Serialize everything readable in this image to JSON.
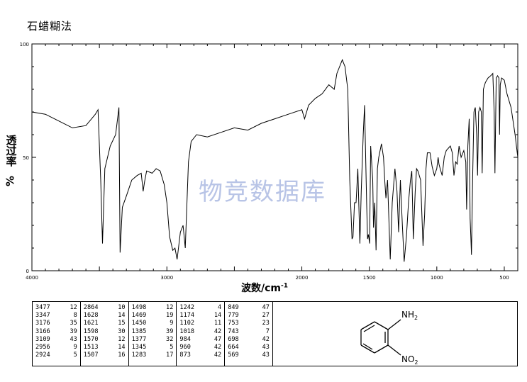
{
  "header": {
    "method": "石蜡糊法"
  },
  "watermark": "物竞数据库",
  "chart_data": {
    "type": "line",
    "xlabel": "波数/cm",
    "xlabel_sup": "-1",
    "ylabel": "透过率",
    "ylabel_unit": "%",
    "xlim": [
      4000,
      400
    ],
    "ylim": [
      0,
      100
    ],
    "x_ticks": [
      "4000",
      "3000",
      "2000",
      "1500",
      "1000",
      "500"
    ],
    "y_ticks": [
      "100",
      "50",
      "0"
    ],
    "series": [
      {
        "values": [
          [
            4000,
            70
          ],
          [
            3900,
            69
          ],
          [
            3800,
            66
          ],
          [
            3700,
            63
          ],
          [
            3600,
            64
          ],
          [
            3530,
            69
          ],
          [
            3510,
            71
          ],
          [
            3490,
            40
          ],
          [
            3477,
            12
          ],
          [
            3460,
            45
          ],
          [
            3420,
            55
          ],
          [
            3380,
            60
          ],
          [
            3355,
            72
          ],
          [
            3347,
            8
          ],
          [
            3330,
            28
          ],
          [
            3300,
            33
          ],
          [
            3260,
            40
          ],
          [
            3220,
            42
          ],
          [
            3190,
            43
          ],
          [
            3176,
            35
          ],
          [
            3166,
            39
          ],
          [
            3150,
            44
          ],
          [
            3109,
            43
          ],
          [
            3080,
            45
          ],
          [
            3050,
            44
          ],
          [
            3020,
            38
          ],
          [
            3000,
            30
          ],
          [
            2980,
            15
          ],
          [
            2956,
            9
          ],
          [
            2940,
            10
          ],
          [
            2924,
            5
          ],
          [
            2900,
            17
          ],
          [
            2880,
            20
          ],
          [
            2864,
            10
          ],
          [
            2840,
            48
          ],
          [
            2820,
            57
          ],
          [
            2780,
            60
          ],
          [
            2700,
            59
          ],
          [
            2600,
            61
          ],
          [
            2500,
            63
          ],
          [
            2400,
            62
          ],
          [
            2300,
            65
          ],
          [
            2200,
            67
          ],
          [
            2100,
            69
          ],
          [
            2000,
            71
          ],
          [
            1980,
            67
          ],
          [
            1950,
            73
          ],
          [
            1900,
            76
          ],
          [
            1850,
            78
          ],
          [
            1800,
            82
          ],
          [
            1760,
            80
          ],
          [
            1740,
            87
          ],
          [
            1720,
            90
          ],
          [
            1700,
            93
          ],
          [
            1680,
            90
          ],
          [
            1660,
            80
          ],
          [
            1645,
            40
          ],
          [
            1628,
            14
          ],
          [
            1621,
            15
          ],
          [
            1610,
            30
          ],
          [
            1598,
            30
          ],
          [
            1585,
            45
          ],
          [
            1570,
            12
          ],
          [
            1560,
            35
          ],
          [
            1545,
            60
          ],
          [
            1535,
            73
          ],
          [
            1520,
            30
          ],
          [
            1513,
            14
          ],
          [
            1507,
            16
          ],
          [
            1498,
            12
          ],
          [
            1490,
            55
          ],
          [
            1475,
            40
          ],
          [
            1469,
            19
          ],
          [
            1460,
            30
          ],
          [
            1450,
            9
          ],
          [
            1440,
            45
          ],
          [
            1430,
            50
          ],
          [
            1410,
            56
          ],
          [
            1395,
            50
          ],
          [
            1385,
            39
          ],
          [
            1377,
            32
          ],
          [
            1365,
            40
          ],
          [
            1345,
            5
          ],
          [
            1330,
            30
          ],
          [
            1310,
            45
          ],
          [
            1295,
            35
          ],
          [
            1283,
            17
          ],
          [
            1270,
            40
          ],
          [
            1255,
            20
          ],
          [
            1242,
            4
          ],
          [
            1225,
            15
          ],
          [
            1210,
            30
          ],
          [
            1195,
            40
          ],
          [
            1185,
            44
          ],
          [
            1174,
            14
          ],
          [
            1160,
            35
          ],
          [
            1150,
            45
          ],
          [
            1140,
            44
          ],
          [
            1120,
            40
          ],
          [
            1102,
            11
          ],
          [
            1090,
            25
          ],
          [
            1080,
            45
          ],
          [
            1070,
            52
          ],
          [
            1050,
            52
          ],
          [
            1035,
            46
          ],
          [
            1018,
            42
          ],
          [
            1000,
            45
          ],
          [
            990,
            50
          ],
          [
            984,
            47
          ],
          [
            975,
            45
          ],
          [
            960,
            42
          ],
          [
            945,
            50
          ],
          [
            930,
            53
          ],
          [
            900,
            55
          ],
          [
            885,
            52
          ],
          [
            873,
            42
          ],
          [
            860,
            48
          ],
          [
            849,
            47
          ],
          [
            835,
            55
          ],
          [
            820,
            50
          ],
          [
            800,
            53
          ],
          [
            785,
            48
          ],
          [
            779,
            27
          ],
          [
            770,
            55
          ],
          [
            760,
            67
          ],
          [
            753,
            23
          ],
          [
            748,
            15
          ],
          [
            743,
            7
          ],
          [
            735,
            40
          ],
          [
            725,
            70
          ],
          [
            715,
            72
          ],
          [
            705,
            60
          ],
          [
            698,
            42
          ],
          [
            690,
            70
          ],
          [
            680,
            72
          ],
          [
            670,
            70
          ],
          [
            664,
            43
          ],
          [
            655,
            80
          ],
          [
            640,
            83
          ],
          [
            620,
            85
          ],
          [
            600,
            86
          ],
          [
            585,
            87
          ],
          [
            575,
            70
          ],
          [
            569,
            43
          ],
          [
            560,
            85
          ],
          [
            550,
            86
          ],
          [
            540,
            85
          ],
          [
            535,
            60
          ],
          [
            530,
            82
          ],
          [
            520,
            85
          ],
          [
            500,
            84
          ],
          [
            480,
            78
          ],
          [
            450,
            72
          ],
          [
            420,
            60
          ],
          [
            400,
            50
          ]
        ]
      }
    ]
  },
  "peak_table": {
    "columns": [
      [
        [
          "3477",
          "12"
        ],
        [
          "3347",
          "8"
        ],
        [
          "3176",
          "35"
        ],
        [
          "3166",
          "39"
        ],
        [
          "3109",
          "43"
        ],
        [
          "2956",
          "9"
        ],
        [
          "2924",
          "5"
        ]
      ],
      [
        [
          "2864",
          "10"
        ],
        [
          "1628",
          "14"
        ],
        [
          "1621",
          "15"
        ],
        [
          "1598",
          "30"
        ],
        [
          "1570",
          "12"
        ],
        [
          "1513",
          "14"
        ],
        [
          "1507",
          "16"
        ]
      ],
      [
        [
          "1498",
          "12"
        ],
        [
          "1469",
          "19"
        ],
        [
          "1450",
          "9"
        ],
        [
          "1385",
          "39"
        ],
        [
          "1377",
          "32"
        ],
        [
          "1345",
          "5"
        ],
        [
          "1283",
          "17"
        ]
      ],
      [
        [
          "1242",
          "4"
        ],
        [
          "1174",
          "14"
        ],
        [
          "1102",
          "11"
        ],
        [
          "1018",
          "42"
        ],
        [
          "984",
          "47"
        ],
        [
          "960",
          "42"
        ],
        [
          "873",
          "42"
        ]
      ],
      [
        [
          "849",
          "47"
        ],
        [
          "779",
          "27"
        ],
        [
          "753",
          "23"
        ],
        [
          "743",
          "7"
        ],
        [
          "698",
          "42"
        ],
        [
          "664",
          "43"
        ],
        [
          "569",
          "43"
        ]
      ]
    ]
  },
  "structure": {
    "amino_label": "NH",
    "amino_sub": "2",
    "nitro_label": "NO",
    "nitro_sub": "2"
  }
}
